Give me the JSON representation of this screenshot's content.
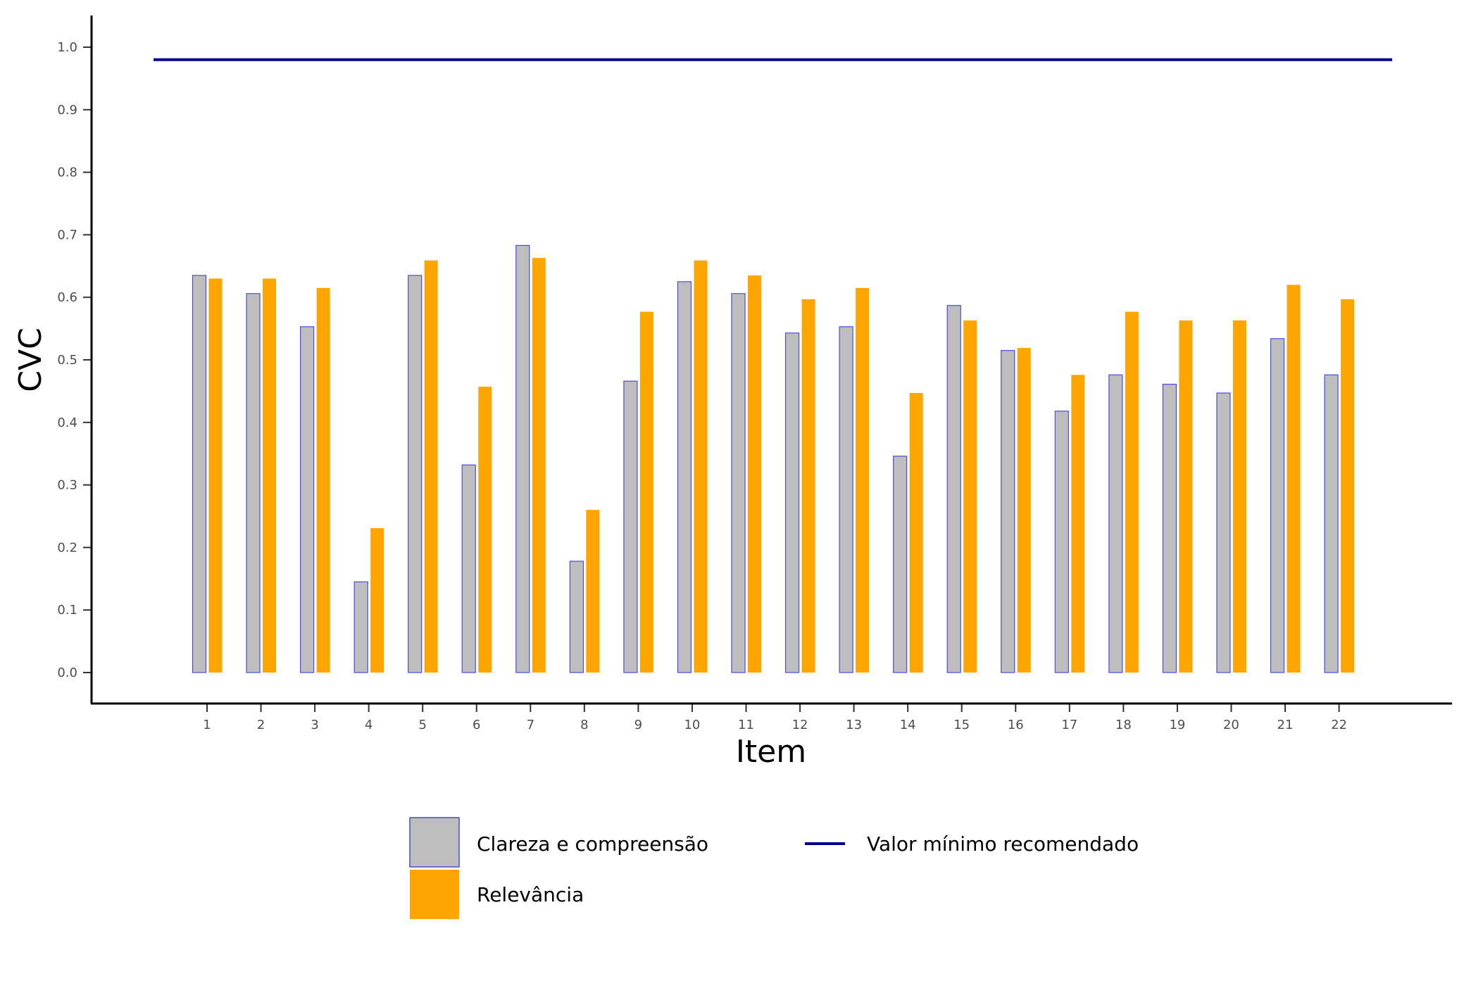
{
  "chart_data": {
    "type": "bar",
    "title": "",
    "xlabel": "Item",
    "ylabel": "CVC",
    "ylim": [
      0,
      1.0
    ],
    "yticks": [
      "0.0",
      "0.1",
      "0.2",
      "0.3",
      "0.4",
      "0.5",
      "0.6",
      "0.7",
      "0.8",
      "0.9",
      "1.0"
    ],
    "categories": [
      "1",
      "2",
      "3",
      "4",
      "5",
      "6",
      "7",
      "8",
      "9",
      "10",
      "11",
      "12",
      "13",
      "14",
      "15",
      "16",
      "17",
      "18",
      "19",
      "20",
      "21",
      "22"
    ],
    "series": [
      {
        "name": "Clareza e compreensão",
        "color": "#bebebe",
        "border_color": "#4b4bdc",
        "values": [
          0.635,
          0.606,
          0.553,
          0.145,
          0.635,
          0.332,
          0.683,
          0.178,
          0.466,
          0.625,
          0.606,
          0.543,
          0.553,
          0.346,
          0.587,
          0.515,
          0.418,
          0.476,
          0.461,
          0.447,
          0.534,
          0.476
        ]
      },
      {
        "name": "Relevância",
        "color": "#ffa500",
        "values": [
          0.63,
          0.63,
          0.615,
          0.231,
          0.659,
          0.457,
          0.663,
          0.26,
          0.577,
          0.659,
          0.635,
          0.597,
          0.615,
          0.447,
          0.563,
          0.519,
          0.476,
          0.577,
          0.563,
          0.563,
          0.62,
          0.597
        ]
      }
    ],
    "reference_line": {
      "name": "Valor mínimo recomendado",
      "value": 0.98,
      "color": "#00008b"
    },
    "legend_position": "bottom",
    "grid": false
  }
}
